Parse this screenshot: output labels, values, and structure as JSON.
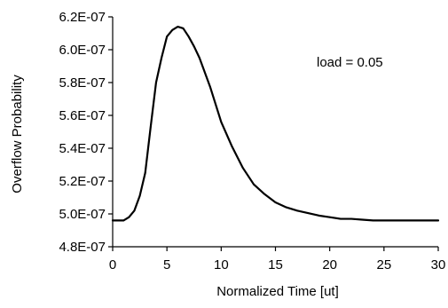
{
  "chart_data": {
    "type": "line",
    "title": "",
    "xlabel": "Normalized Time [ut]",
    "ylabel": "Overflow Probability",
    "xlim": [
      0,
      30
    ],
    "ylim": [
      4.8e-07,
      6.2e-07
    ],
    "x_ticks": [
      0,
      5,
      10,
      15,
      20,
      25,
      30
    ],
    "x_tick_labels": [
      "0",
      "5",
      "10",
      "15",
      "20",
      "25",
      "30"
    ],
    "y_ticks": [
      4.8e-07,
      5e-07,
      5.2e-07,
      5.4e-07,
      5.6e-07,
      5.8e-07,
      6e-07,
      6.2e-07
    ],
    "y_tick_labels": [
      "4.8E-07",
      "5.0E-07",
      "5.2E-07",
      "5.4E-07",
      "5.6E-07",
      "5.8E-07",
      "6.0E-07",
      "6.2E-07"
    ],
    "grid": false,
    "legend": "none",
    "annotation": "load = 0.05",
    "series": [
      {
        "color": "#000000",
        "x": [
          0,
          1,
          1.5,
          2,
          2.5,
          3,
          3.5,
          4,
          4.5,
          5,
          5.5,
          6,
          6.5,
          7,
          7.5,
          8,
          9,
          10,
          11,
          12,
          13,
          14,
          15,
          16,
          17,
          18,
          19,
          20,
          21,
          22,
          23,
          24,
          25,
          26,
          27,
          28,
          29,
          30
        ],
        "y": [
          4.96e-07,
          4.96e-07,
          4.98e-07,
          5.02e-07,
          5.11e-07,
          5.25e-07,
          5.53e-07,
          5.8e-07,
          5.95e-07,
          6.08e-07,
          6.12e-07,
          6.14e-07,
          6.13e-07,
          6.08e-07,
          6.02e-07,
          5.95e-07,
          5.77e-07,
          5.56e-07,
          5.41e-07,
          5.28e-07,
          5.18e-07,
          5.12e-07,
          5.07e-07,
          5.04e-07,
          5.02e-07,
          5.005e-07,
          4.99e-07,
          4.98e-07,
          4.97e-07,
          4.97e-07,
          4.965e-07,
          4.96e-07,
          4.96e-07,
          4.96e-07,
          4.96e-07,
          4.96e-07,
          4.96e-07,
          4.96e-07
        ]
      }
    ]
  }
}
